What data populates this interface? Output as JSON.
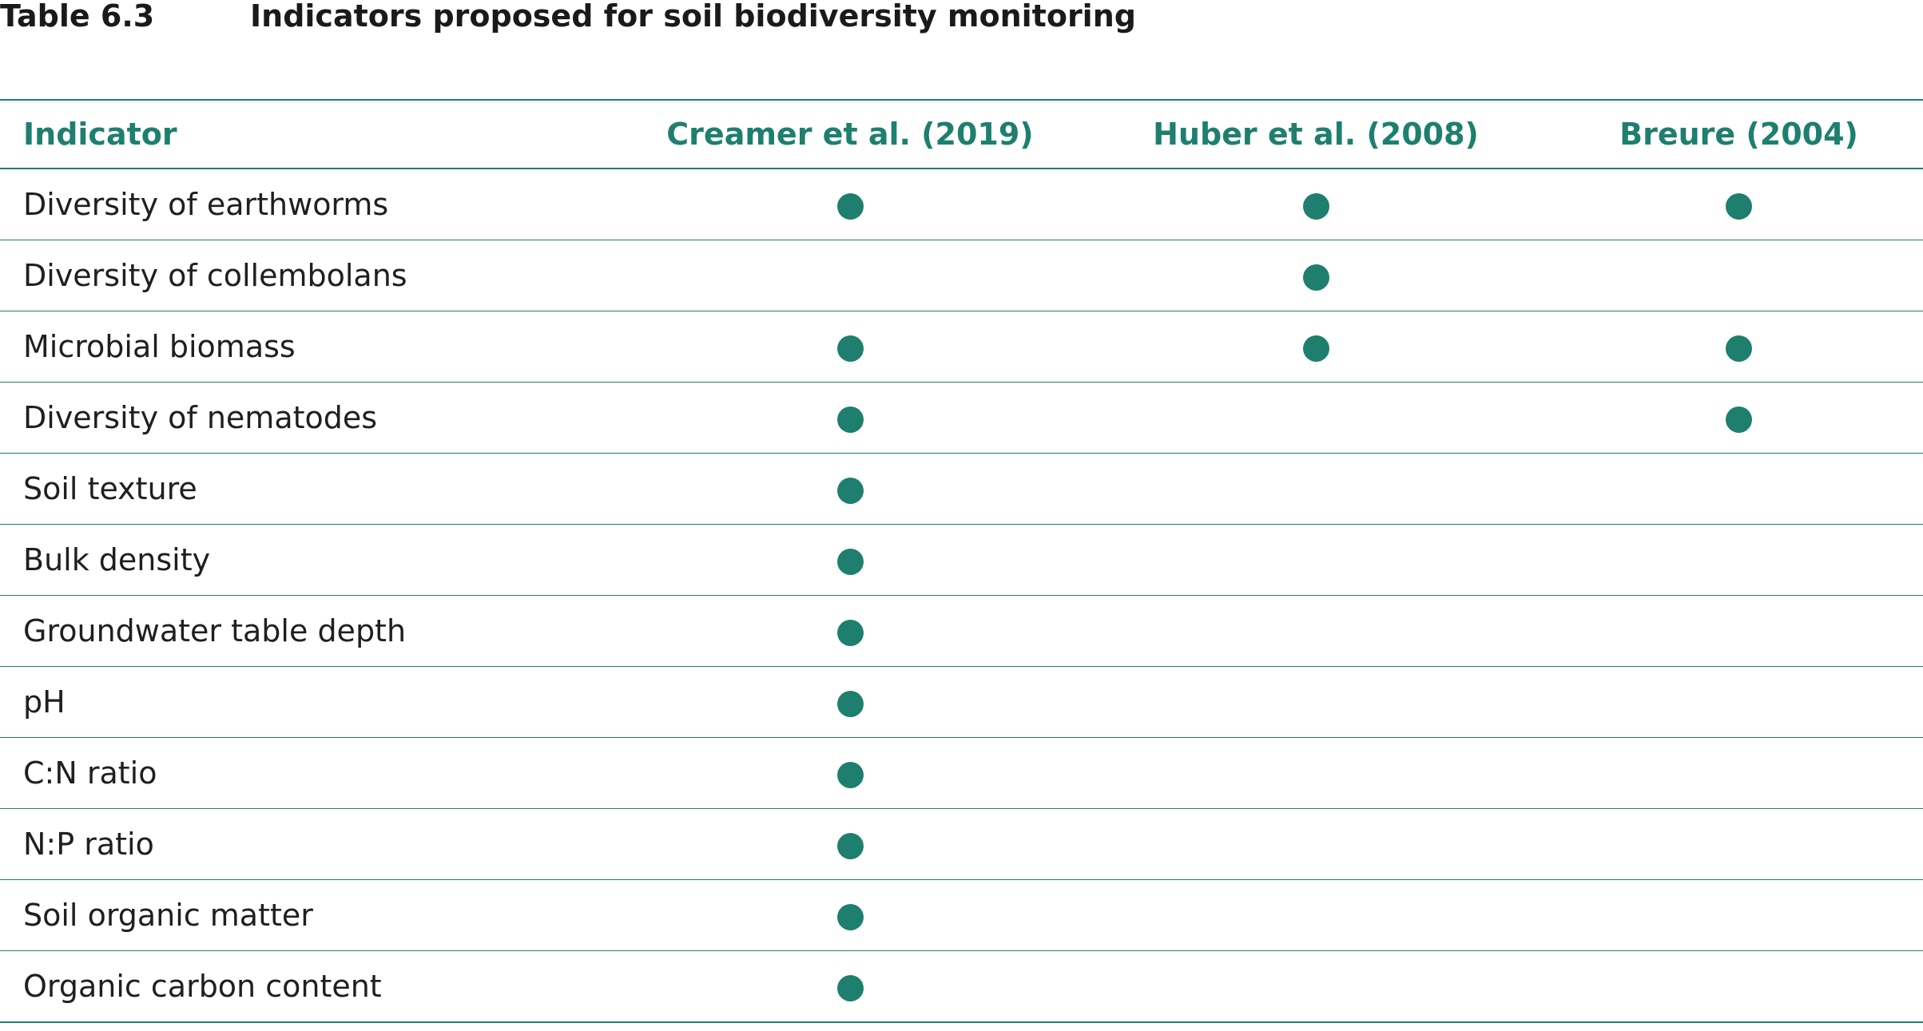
{
  "caption": {
    "number": "Table 6.3",
    "title": "Indicators proposed for soil biodiversity monitoring"
  },
  "table": {
    "columns": [
      "Indicator",
      "Creamer et al. (2019)",
      "Huber et al. (2008)",
      "Breure (2004)"
    ],
    "marker_icon": "filled-circle-icon",
    "marker_color": "#1e7f6e",
    "rows": [
      {
        "label": "Diversity of earthworms",
        "marks": [
          true,
          true,
          true
        ]
      },
      {
        "label": "Diversity of collembolans",
        "marks": [
          false,
          true,
          false
        ]
      },
      {
        "label": "Microbial biomass",
        "marks": [
          true,
          true,
          true
        ]
      },
      {
        "label": "Diversity of nematodes",
        "marks": [
          true,
          false,
          true
        ]
      },
      {
        "label": "Soil texture",
        "marks": [
          true,
          false,
          false
        ]
      },
      {
        "label": "Bulk density",
        "marks": [
          true,
          false,
          false
        ]
      },
      {
        "label": "Groundwater table depth",
        "marks": [
          true,
          false,
          false
        ]
      },
      {
        "label": "pH",
        "marks": [
          true,
          false,
          false
        ]
      },
      {
        "label": "C:N ratio",
        "marks": [
          true,
          false,
          false
        ]
      },
      {
        "label": "N:P ratio",
        "marks": [
          true,
          false,
          false
        ]
      },
      {
        "label": "Soil organic matter",
        "marks": [
          true,
          false,
          false
        ]
      },
      {
        "label": "Organic carbon content",
        "marks": [
          true,
          false,
          false
        ]
      }
    ]
  }
}
